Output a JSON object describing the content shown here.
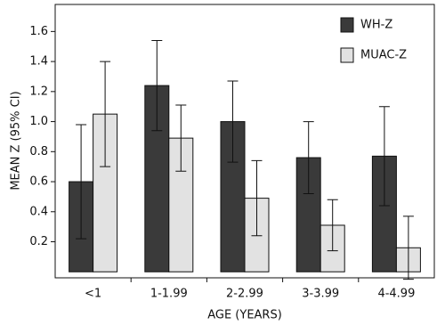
{
  "chart_data": {
    "type": "bar",
    "y_label": "MEAN Z (95% CI)",
    "x_label": "AGE (YEARS)",
    "categories": [
      "<1",
      "1-1.99",
      "2-2.99",
      "3-3.99",
      "4-4.99"
    ],
    "series": [
      {
        "name": "WH-Z",
        "color": "#3a3a3a",
        "values": [
          0.6,
          1.24,
          1.0,
          0.76,
          0.77
        ],
        "errors": [
          0.38,
          0.3,
          0.27,
          0.24,
          0.33
        ]
      },
      {
        "name": "MUAC-Z",
        "color": "#e2e2e2",
        "values": [
          1.05,
          0.89,
          0.49,
          0.31,
          0.16
        ],
        "errors": [
          0.35,
          0.22,
          0.25,
          0.17,
          0.21
        ]
      }
    ],
    "ylim": [
      -0.04,
      1.78
    ],
    "yticks": [
      0.2,
      0.4,
      0.6,
      0.8,
      {
        "value": 1,
        "label": "1.0"
      },
      1.2,
      1.4,
      1.6
    ],
    "legend": "top-right"
  }
}
